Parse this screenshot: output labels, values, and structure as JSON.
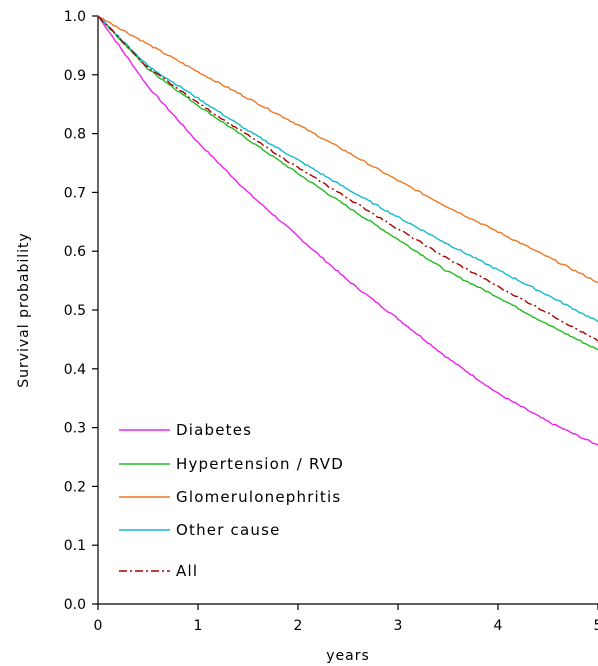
{
  "chart_data": {
    "type": "line",
    "title": "",
    "xlabel": "years",
    "ylabel": "Survival probability",
    "xlim": [
      0,
      5
    ],
    "ylim": [
      0,
      1.0
    ],
    "xticks": [
      "0",
      "1",
      "2",
      "3",
      "4",
      "5"
    ],
    "yticks": [
      "0.0",
      "0.1",
      "0.2",
      "0.3",
      "0.4",
      "0.5",
      "0.6",
      "0.7",
      "0.8",
      "0.9",
      "1.0"
    ],
    "grid": false,
    "legend_position": "bottom-left",
    "x": [
      0,
      0.5,
      1,
      1.5,
      2,
      2.5,
      3,
      3.5,
      4,
      4.5,
      5
    ],
    "series": [
      {
        "name": "Diabetes",
        "color": "#ee22ee",
        "dash": "solid",
        "values": [
          1.0,
          0.88,
          0.785,
          0.7,
          0.625,
          0.55,
          0.485,
          0.418,
          0.358,
          0.31,
          0.27
        ]
      },
      {
        "name": "Hypertension / RVD",
        "color": "#22bb22",
        "dash": "solid",
        "values": [
          1.0,
          0.91,
          0.848,
          0.79,
          0.732,
          0.675,
          0.62,
          0.565,
          0.522,
          0.475,
          0.432
        ]
      },
      {
        "name": "Glomerulonephritis",
        "color": "#ee7722",
        "dash": "solid",
        "values": [
          1.0,
          0.952,
          0.905,
          0.86,
          0.815,
          0.768,
          0.72,
          0.675,
          0.633,
          0.59,
          0.547
        ]
      },
      {
        "name": "Other cause",
        "color": "#11bbcc",
        "dash": "solid",
        "values": [
          1.0,
          0.915,
          0.86,
          0.805,
          0.755,
          0.705,
          0.658,
          0.612,
          0.568,
          0.525,
          0.48
        ]
      },
      {
        "name": "All",
        "color": "#aa0000",
        "dash": "dashdot",
        "values": [
          1.0,
          0.912,
          0.852,
          0.797,
          0.742,
          0.69,
          0.638,
          0.587,
          0.54,
          0.495,
          0.447
        ]
      }
    ]
  }
}
